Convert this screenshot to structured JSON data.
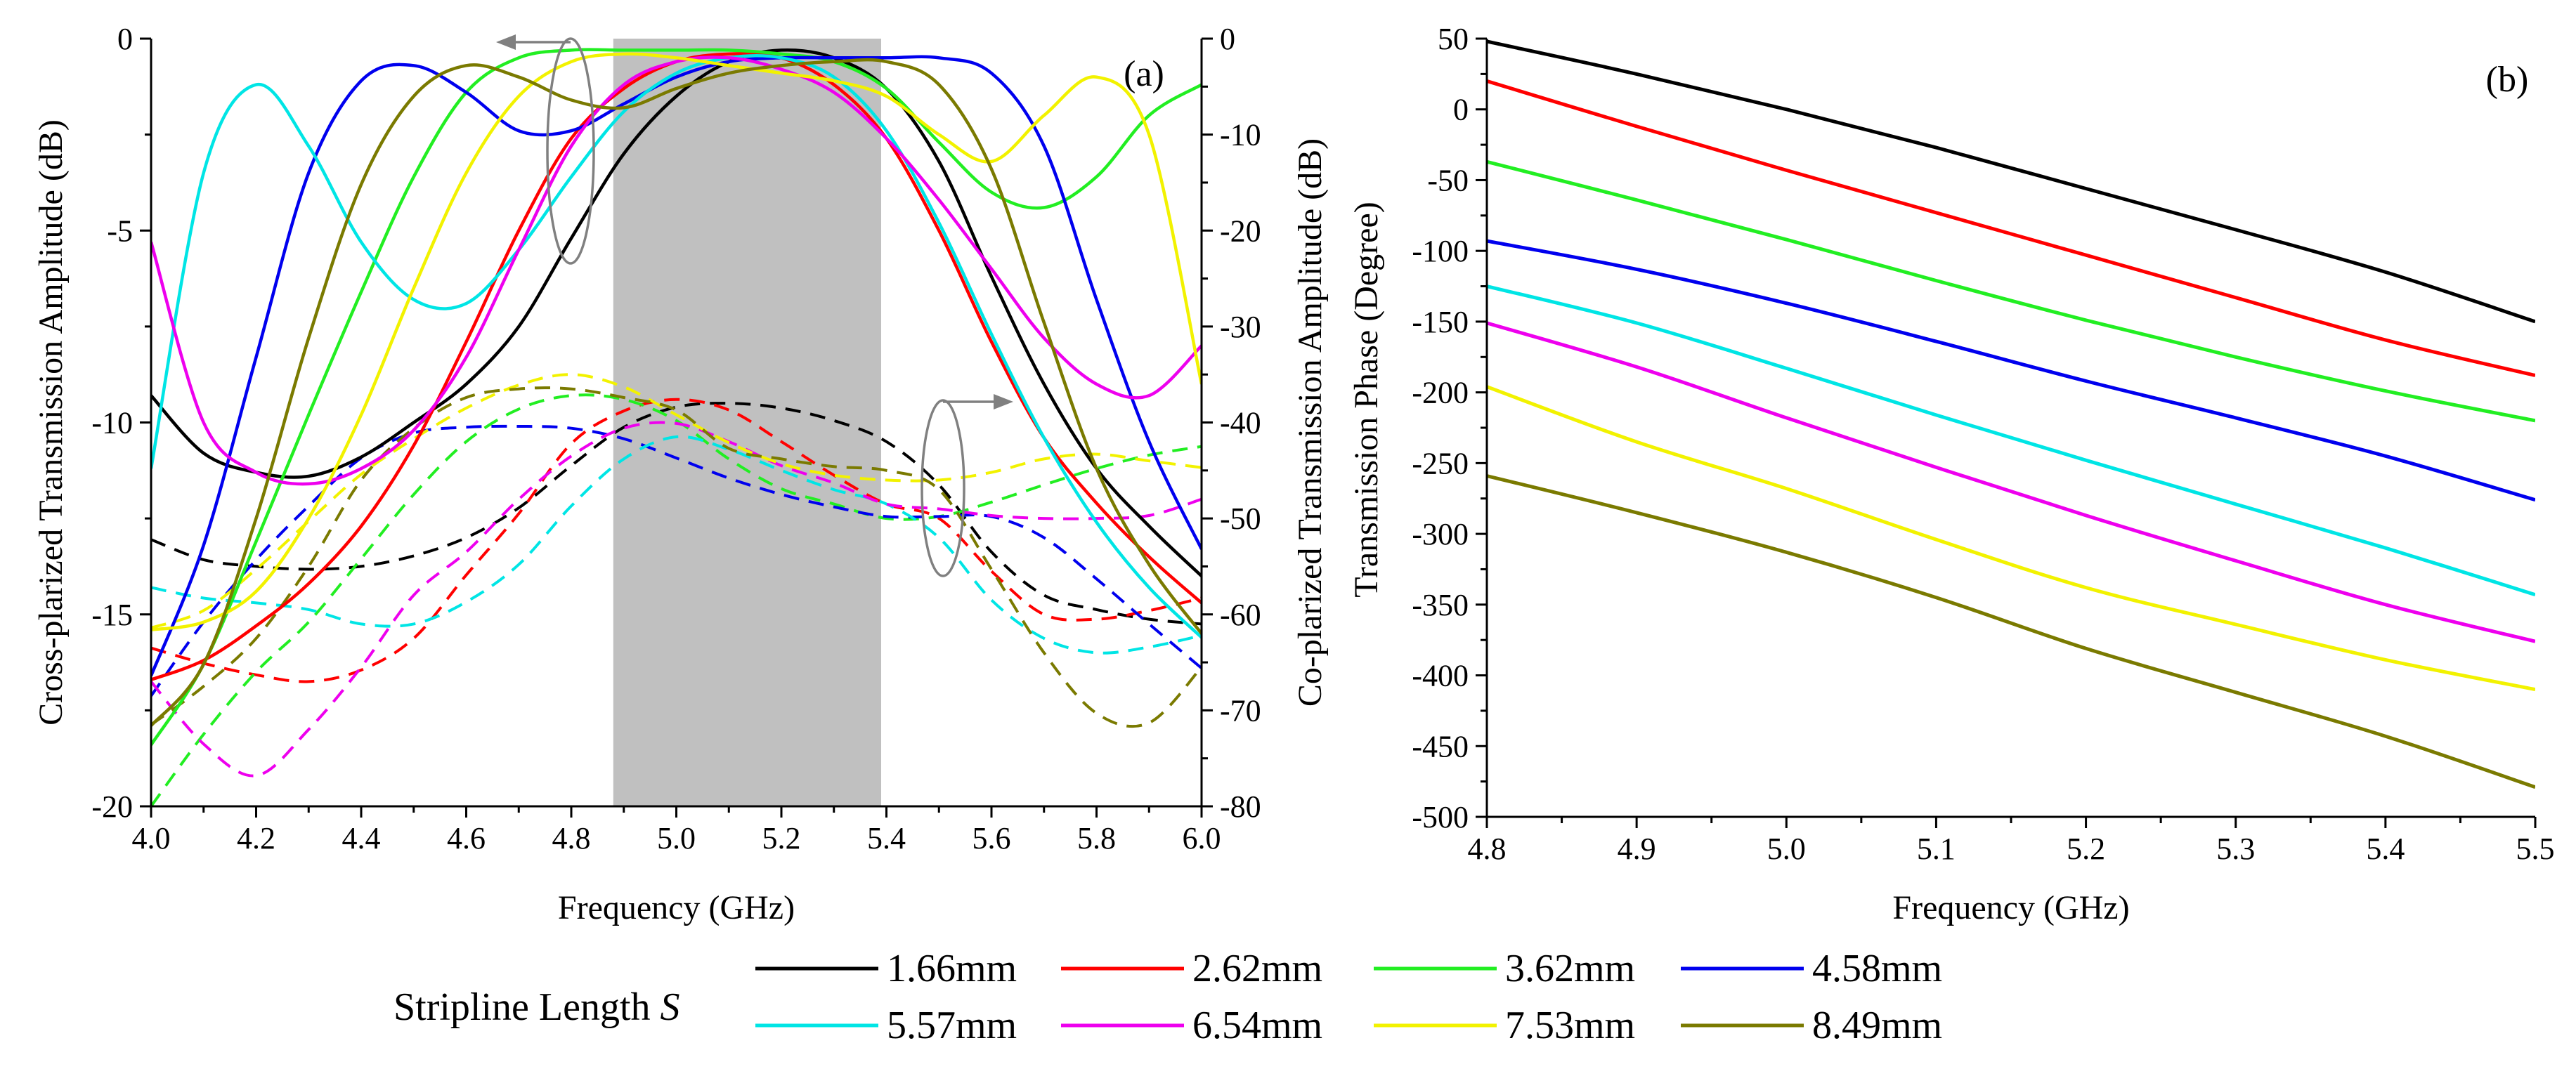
{
  "legend": {
    "title": "Stripline Length",
    "title_var": "S",
    "entries": [
      {
        "label": "1.66mm",
        "color": "#000000"
      },
      {
        "label": "2.62mm",
        "color": "#ff0000"
      },
      {
        "label": "3.62mm",
        "color": "#22ee22"
      },
      {
        "label": "4.58mm",
        "color": "#0000ee"
      },
      {
        "label": "5.57mm",
        "color": "#00e5e5"
      },
      {
        "label": "6.54mm",
        "color": "#ee00ee"
      },
      {
        "label": "7.53mm",
        "color": "#f2f200"
      },
      {
        "label": "8.49mm",
        "color": "#7a7a00"
      }
    ]
  },
  "chart_data": [
    {
      "type": "line",
      "panel": "(a)",
      "xlabel": "Frequency (GHz)",
      "ylabel": "Cross-plarized Transmission Amplitude (dB)",
      "y2label": "Co-plarized Transmission Amplitude (dB)",
      "xlim": [
        4.0,
        6.0
      ],
      "ylim": [
        -20,
        0
      ],
      "y2lim": [
        -80,
        0
      ],
      "xticks": [
        "4.0",
        "4.2",
        "4.4",
        "4.6",
        "4.8",
        "5.0",
        "5.2",
        "5.4",
        "5.6",
        "5.8",
        "6.0"
      ],
      "yticks": [
        "0",
        "-5",
        "-10",
        "-15",
        "-20"
      ],
      "y2ticks": [
        "0",
        "-10",
        "-20",
        "-30",
        "-40",
        "-50",
        "-60",
        "-70",
        "-80"
      ],
      "shaded_band": [
        4.88,
        5.39
      ],
      "x": [
        4.0,
        4.1,
        4.2,
        4.3,
        4.4,
        4.5,
        4.6,
        4.7,
        4.8,
        4.9,
        5.0,
        5.1,
        5.2,
        5.3,
        5.4,
        5.5,
        5.6,
        5.7,
        5.8,
        5.9,
        6.0
      ],
      "series_solid_axis": "left (dB, 0 to -20)",
      "series_solid": [
        {
          "name": "1.66mm",
          "values": [
            -9.3,
            -10.8,
            -11.3,
            -11.4,
            -10.9,
            -10.0,
            -9.0,
            -7.5,
            -5.2,
            -3.0,
            -1.5,
            -0.6,
            -0.3,
            -0.5,
            -1.3,
            -3.2,
            -6.2,
            -9.0,
            -11.2,
            -12.7,
            -14.0
          ]
        },
        {
          "name": "2.62mm",
          "values": [
            -16.7,
            -16.2,
            -15.3,
            -14.2,
            -12.7,
            -10.6,
            -7.9,
            -5.0,
            -2.6,
            -1.3,
            -0.6,
            -0.4,
            -0.5,
            -1.2,
            -2.6,
            -5.0,
            -7.9,
            -10.4,
            -12.1,
            -13.5,
            -14.7
          ]
        },
        {
          "name": "3.62mm",
          "values": [
            -18.4,
            -16.3,
            -13.1,
            -9.8,
            -6.6,
            -3.6,
            -1.4,
            -0.5,
            -0.3,
            -0.3,
            -0.3,
            -0.3,
            -0.4,
            -0.6,
            -1.3,
            -2.7,
            -4.0,
            -4.4,
            -3.6,
            -2.0,
            -1.2
          ]
        },
        {
          "name": "4.58mm",
          "values": [
            -16.6,
            -13.2,
            -8.3,
            -3.5,
            -1.1,
            -0.7,
            -1.4,
            -2.4,
            -2.4,
            -1.7,
            -1.0,
            -0.6,
            -0.5,
            -0.5,
            -0.5,
            -0.5,
            -0.9,
            -2.8,
            -6.8,
            -10.5,
            -13.3
          ]
        },
        {
          "name": "5.57mm",
          "values": [
            -11.2,
            -3.5,
            -1.2,
            -2.8,
            -5.3,
            -6.8,
            -6.9,
            -5.5,
            -3.6,
            -1.9,
            -0.9,
            -0.5,
            -0.5,
            -1.0,
            -2.4,
            -4.8,
            -7.7,
            -10.4,
            -12.6,
            -14.3,
            -15.6
          ]
        },
        {
          "name": "6.54mm",
          "values": [
            -5.3,
            -10.0,
            -11.3,
            -11.6,
            -11.2,
            -10.2,
            -8.3,
            -5.5,
            -2.8,
            -1.2,
            -0.6,
            -0.5,
            -0.8,
            -1.4,
            -2.6,
            -4.2,
            -6.0,
            -7.8,
            -9.0,
            -9.3,
            -8.0
          ]
        },
        {
          "name": "7.53mm",
          "values": [
            -15.4,
            -15.2,
            -14.4,
            -12.5,
            -9.8,
            -6.5,
            -3.5,
            -1.5,
            -0.6,
            -0.4,
            -0.5,
            -0.7,
            -0.9,
            -1.1,
            -1.5,
            -2.5,
            -3.2,
            -2.0,
            -1.0,
            -2.5,
            -9.0
          ]
        },
        {
          "name": "8.49mm",
          "values": [
            -17.9,
            -16.3,
            -12.5,
            -7.8,
            -3.8,
            -1.5,
            -0.7,
            -1.0,
            -1.6,
            -1.8,
            -1.3,
            -0.9,
            -0.7,
            -0.6,
            -0.6,
            -1.2,
            -3.4,
            -7.4,
            -11.2,
            -13.7,
            -15.5
          ]
        }
      ],
      "series_dashed_axis": "right (dB, 0 to -80)",
      "series_dashed": [
        {
          "name": "1.66mm",
          "values": [
            -52.2,
            -54.3,
            -55.0,
            -55.3,
            -55.0,
            -53.9,
            -52.0,
            -48.9,
            -44.5,
            -40.5,
            -38.4,
            -38.0,
            -38.5,
            -39.8,
            -42.0,
            -46.5,
            -53.5,
            -58.0,
            -59.5,
            -60.5,
            -61.0
          ]
        },
        {
          "name": "2.62mm",
          "values": [
            -63.5,
            -65.1,
            -66.3,
            -67.0,
            -65.8,
            -62.5,
            -55.9,
            -49.5,
            -42.2,
            -38.8,
            -37.6,
            -38.7,
            -42.0,
            -45.5,
            -48.5,
            -50.0,
            -55.5,
            -60.0,
            -60.5,
            -59.6,
            -58.3
          ]
        },
        {
          "name": "3.62mm",
          "values": [
            -80.0,
            -72.5,
            -66.0,
            -60.8,
            -54.2,
            -47.5,
            -42.0,
            -38.6,
            -37.2,
            -37.6,
            -39.8,
            -43.8,
            -46.9,
            -48.5,
            -50.0,
            -49.8,
            -48.3,
            -46.5,
            -44.8,
            -43.4,
            -42.5
          ]
        },
        {
          "name": "4.58mm",
          "values": [
            -68.5,
            -60.8,
            -54.3,
            -48.7,
            -43.7,
            -41.1,
            -40.5,
            -40.4,
            -40.6,
            -41.7,
            -43.7,
            -45.8,
            -47.5,
            -48.8,
            -49.8,
            -49.8,
            -49.8,
            -52.0,
            -56.3,
            -61.0,
            -65.6
          ]
        },
        {
          "name": "5.57mm",
          "values": [
            -57.2,
            -58.3,
            -58.8,
            -59.5,
            -61.0,
            -61.0,
            -58.7,
            -54.8,
            -48.7,
            -43.8,
            -41.5,
            -42.8,
            -45.0,
            -47.0,
            -48.5,
            -52.0,
            -58.5,
            -62.5,
            -64.0,
            -63.4,
            -62.2
          ]
        },
        {
          "name": "6.54mm",
          "values": [
            -67.0,
            -73.5,
            -76.8,
            -72.0,
            -65.5,
            -58.0,
            -53.5,
            -48.0,
            -43.5,
            -40.6,
            -40.1,
            -42.0,
            -44.5,
            -46.3,
            -48.5,
            -49.0,
            -49.7,
            -50.0,
            -50.0,
            -49.7,
            -48.0
          ]
        },
        {
          "name": "7.53mm",
          "values": [
            -61.4,
            -59.6,
            -55.3,
            -50.3,
            -45.4,
            -41.7,
            -38.5,
            -36.1,
            -35.0,
            -36.3,
            -39.2,
            -42.1,
            -44.3,
            -45.5,
            -46.0,
            -46.0,
            -45.2,
            -43.8,
            -43.3,
            -44.0,
            -44.7
          ]
        },
        {
          "name": "8.49mm",
          "values": [
            -71.5,
            -67.5,
            -62.5,
            -55.0,
            -46.0,
            -40.6,
            -37.4,
            -36.5,
            -36.5,
            -37.4,
            -38.7,
            -42.7,
            -43.8,
            -44.6,
            -45.0,
            -47.0,
            -55.3,
            -64.0,
            -70.3,
            -71.3,
            -65.5
          ]
        }
      ]
    },
    {
      "type": "line",
      "panel": "(b)",
      "xlabel": "Frequency (GHz)",
      "ylabel": "Transmission Phase (Degree)",
      "xlim": [
        4.8,
        5.5
      ],
      "ylim": [
        -500,
        50
      ],
      "xticks": [
        "4.8",
        "4.9",
        "5.0",
        "5.1",
        "5.2",
        "5.3",
        "5.4",
        "5.5"
      ],
      "yticks": [
        "50",
        "0",
        "-50",
        "-100",
        "-150",
        "-200",
        "-250",
        "-300",
        "-350",
        "-400",
        "-450",
        "-500"
      ],
      "x": [
        4.8,
        4.9,
        5.0,
        5.1,
        5.2,
        5.3,
        5.4,
        5.5
      ],
      "series": [
        {
          "name": "1.66mm",
          "values": [
            48,
            25,
            0,
            -27,
            -56,
            -85,
            -115,
            -150
          ]
        },
        {
          "name": "2.62mm",
          "values": [
            20,
            -12,
            -43,
            -73,
            -103,
            -133,
            -163,
            -188
          ]
        },
        {
          "name": "3.62mm",
          "values": [
            -37,
            -64,
            -92,
            -121,
            -149,
            -175,
            -199,
            -220
          ]
        },
        {
          "name": "4.58mm",
          "values": [
            -93,
            -113,
            -137,
            -164,
            -192,
            -218,
            -245,
            -276
          ]
        },
        {
          "name": "5.57mm",
          "values": [
            -125,
            -151,
            -183,
            -216,
            -248,
            -279,
            -310,
            -343
          ]
        },
        {
          "name": "6.54mm",
          "values": [
            -151,
            -182,
            -218,
            -253,
            -287,
            -319,
            -350,
            -376
          ]
        },
        {
          "name": "7.53mm",
          "values": [
            -196,
            -235,
            -268,
            -304,
            -338,
            -364,
            -389,
            -410
          ]
        },
        {
          "name": "8.49mm",
          "values": [
            -259,
            -285,
            -313,
            -345,
            -381,
            -412,
            -443,
            -479
          ]
        }
      ]
    }
  ]
}
